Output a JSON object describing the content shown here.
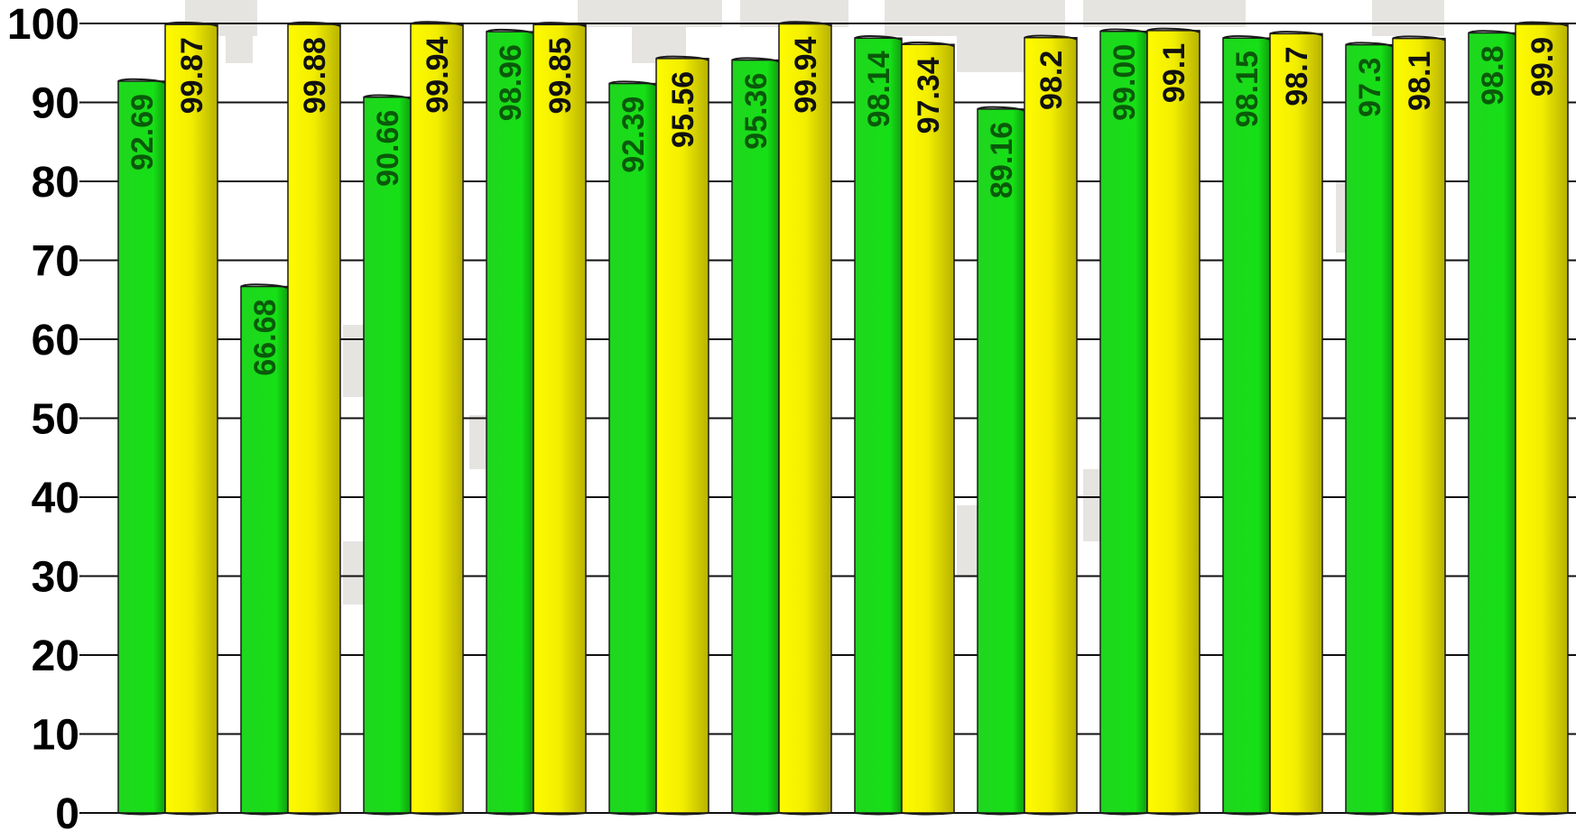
{
  "chart_data": {
    "type": "bar",
    "title": "",
    "xlabel": "",
    "ylabel": "",
    "ylim": [
      0,
      100
    ],
    "yticks": [
      "0",
      "10",
      "20",
      "30",
      "40",
      "50",
      "60",
      "70",
      "80",
      "90",
      "100"
    ],
    "grid": true,
    "legend": "none",
    "categories": [
      "",
      "",
      "",
      "",
      "",
      "",
      "",
      "",
      "",
      "",
      "",
      ""
    ],
    "series": [
      {
        "color": "#22dd22",
        "label_color": "#0a5a0a",
        "values": [
          92.69,
          66.68,
          90.66,
          98.96,
          92.39,
          95.36,
          98.14,
          89.16,
          99.0,
          98.15,
          97.3,
          98.8
        ],
        "labels": [
          "92.69",
          "66.68",
          "90.66",
          "98.96",
          "92.39",
          "95.36",
          "98.14",
          "89.16",
          "99.00",
          "98.15",
          "97.3",
          "98.8"
        ]
      },
      {
        "color": "#f5f000",
        "label_color": "#111111",
        "values": [
          99.87,
          99.88,
          99.94,
          99.85,
          95.56,
          99.94,
          97.34,
          98.2,
          99.1,
          98.7,
          98.1,
          99.9
        ],
        "labels": [
          "99.87",
          "99.88",
          "99.94",
          "99.85",
          "95.56",
          "99.94",
          "97.34",
          "98.2",
          "99.1",
          "98.7",
          "98.1",
          "99.9"
        ]
      }
    ]
  }
}
